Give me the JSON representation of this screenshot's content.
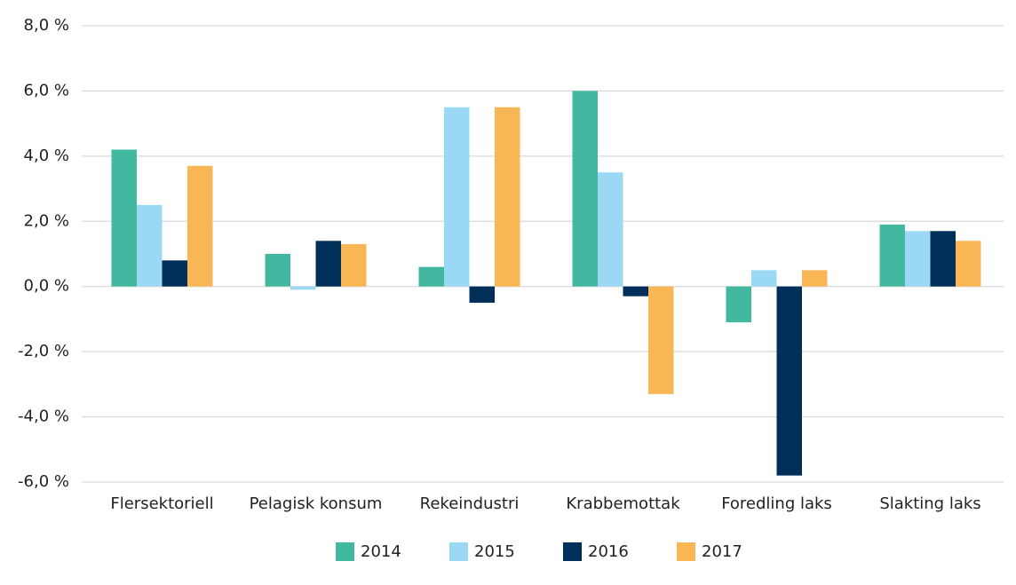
{
  "chart_data": {
    "type": "bar",
    "categories": [
      "Flersektoriell",
      "Pelagisk konsum",
      "Rekeindustri",
      "Krabbemottak",
      "Foredling laks",
      "Slakting laks"
    ],
    "series": [
      {
        "name": "2014",
        "color": "#43b8a0",
        "values": [
          4.2,
          1.0,
          0.6,
          6.0,
          -1.1,
          1.9
        ]
      },
      {
        "name": "2015",
        "color": "#9ad8f6",
        "values": [
          2.5,
          -0.1,
          5.5,
          3.5,
          0.5,
          1.7
        ]
      },
      {
        "name": "2016",
        "color": "#00305a",
        "values": [
          0.8,
          1.4,
          -0.5,
          -0.3,
          -5.8,
          1.7
        ]
      },
      {
        "name": "2017",
        "color": "#f8b655",
        "values": [
          3.7,
          1.3,
          5.5,
          -3.3,
          0.5,
          1.4
        ]
      }
    ],
    "ylim": [
      -6,
      8
    ],
    "yticks": [
      {
        "value": -6,
        "label": "-6,0 %"
      },
      {
        "value": -4,
        "label": "-4,0 %"
      },
      {
        "value": -2,
        "label": "-2,0 %"
      },
      {
        "value": 0,
        "label": "0,0 %"
      },
      {
        "value": 2,
        "label": "2,0 %"
      },
      {
        "value": 4,
        "label": "4,0 %"
      },
      {
        "value": 6,
        "label": "6,0 %"
      },
      {
        "value": 8,
        "label": "8,0 %"
      }
    ],
    "grid": true,
    "legend": "bottom"
  }
}
